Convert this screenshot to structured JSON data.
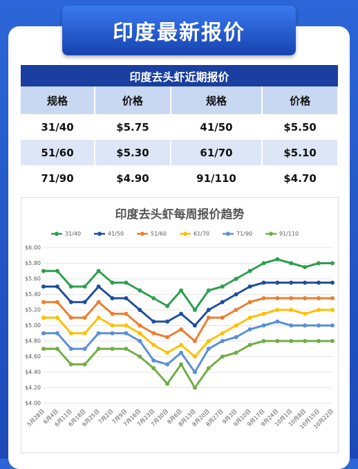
{
  "header": {
    "title": "印度最新报价"
  },
  "table": {
    "title": "印度去头虾近期报价",
    "columns": [
      "规格",
      "价格",
      "规格",
      "价格"
    ],
    "rows": [
      [
        "31/40",
        "$5.75",
        "41/50",
        "$5.50"
      ],
      [
        "51/60",
        "$5.30",
        "61/70",
        "$5.10"
      ],
      [
        "71/90",
        "$4.90",
        "91/110",
        "$4.70"
      ]
    ]
  },
  "chart_data": {
    "type": "line",
    "title": "印度去头虾每周报价趋势",
    "categories": [
      "5月28日",
      "6月4日",
      "6月11日",
      "6月18日",
      "6月25日",
      "7月2日",
      "7月9日",
      "7月16日",
      "7月23日",
      "7月30日",
      "8月6日",
      "8月13日",
      "8月20日",
      "8月27日",
      "9月3日",
      "9月10日",
      "9月17日",
      "9月24日",
      "10月1日",
      "10月8日",
      "10月15日",
      "10月22日"
    ],
    "series": [
      {
        "name": "31/40",
        "color": "#2e9e4f",
        "values": [
          5.7,
          5.7,
          5.5,
          5.5,
          5.7,
          5.55,
          5.55,
          5.45,
          5.35,
          5.25,
          5.45,
          5.2,
          5.45,
          5.5,
          5.6,
          5.7,
          5.8,
          5.85,
          5.8,
          5.75,
          5.8,
          5.8
        ]
      },
      {
        "name": "41/50",
        "color": "#1f4e9c",
        "values": [
          5.5,
          5.5,
          5.3,
          5.3,
          5.5,
          5.35,
          5.35,
          5.2,
          5.05,
          5.05,
          5.15,
          5.0,
          5.2,
          5.3,
          5.4,
          5.5,
          5.55,
          5.55,
          5.55,
          5.55,
          5.55,
          5.55
        ]
      },
      {
        "name": "51/60",
        "color": "#ed7d31",
        "values": [
          5.3,
          5.3,
          5.1,
          5.1,
          5.3,
          5.15,
          5.15,
          5.0,
          4.9,
          4.85,
          4.95,
          4.8,
          5.1,
          5.1,
          5.2,
          5.3,
          5.35,
          5.35,
          5.35,
          5.35,
          5.35,
          5.35
        ]
      },
      {
        "name": "61/70",
        "color": "#ffc000",
        "values": [
          5.1,
          5.1,
          4.9,
          4.9,
          5.1,
          5.0,
          5.0,
          4.9,
          4.75,
          4.65,
          4.75,
          4.6,
          4.8,
          4.9,
          5.0,
          5.1,
          5.15,
          5.2,
          5.2,
          5.15,
          5.2,
          5.2
        ]
      },
      {
        "name": "71/90",
        "color": "#5b8fd6",
        "values": [
          4.9,
          4.9,
          4.7,
          4.7,
          4.9,
          4.9,
          4.9,
          4.8,
          4.55,
          4.5,
          4.65,
          4.4,
          4.7,
          4.8,
          4.85,
          4.95,
          5.0,
          5.05,
          5.0,
          5.0,
          5.0,
          5.0
        ]
      },
      {
        "name": "91/110",
        "color": "#70ad47",
        "values": [
          4.7,
          4.7,
          4.5,
          4.5,
          4.7,
          4.7,
          4.7,
          4.6,
          4.45,
          4.25,
          4.5,
          4.2,
          4.45,
          4.6,
          4.65,
          4.75,
          4.8,
          4.8,
          4.8,
          4.8,
          4.8,
          4.8
        ]
      }
    ],
    "ylim": [
      4.0,
      6.0
    ],
    "yticks": [
      {
        "value": 4.0,
        "label": "$4.00"
      },
      {
        "value": 4.2,
        "label": "$4.20"
      },
      {
        "value": 4.4,
        "label": "$4.40"
      },
      {
        "value": 4.6,
        "label": "$4.60"
      },
      {
        "value": 4.8,
        "label": "$4.80"
      },
      {
        "value": 5.0,
        "label": "$5.00"
      },
      {
        "value": 5.2,
        "label": "$5.20"
      },
      {
        "value": 5.4,
        "label": "$5.40"
      },
      {
        "value": 5.6,
        "label": "$5.60"
      },
      {
        "value": 5.8,
        "label": "$5.80"
      },
      {
        "value": 6.0,
        "label": "$6.00"
      }
    ],
    "grid": true,
    "legend": "top"
  }
}
